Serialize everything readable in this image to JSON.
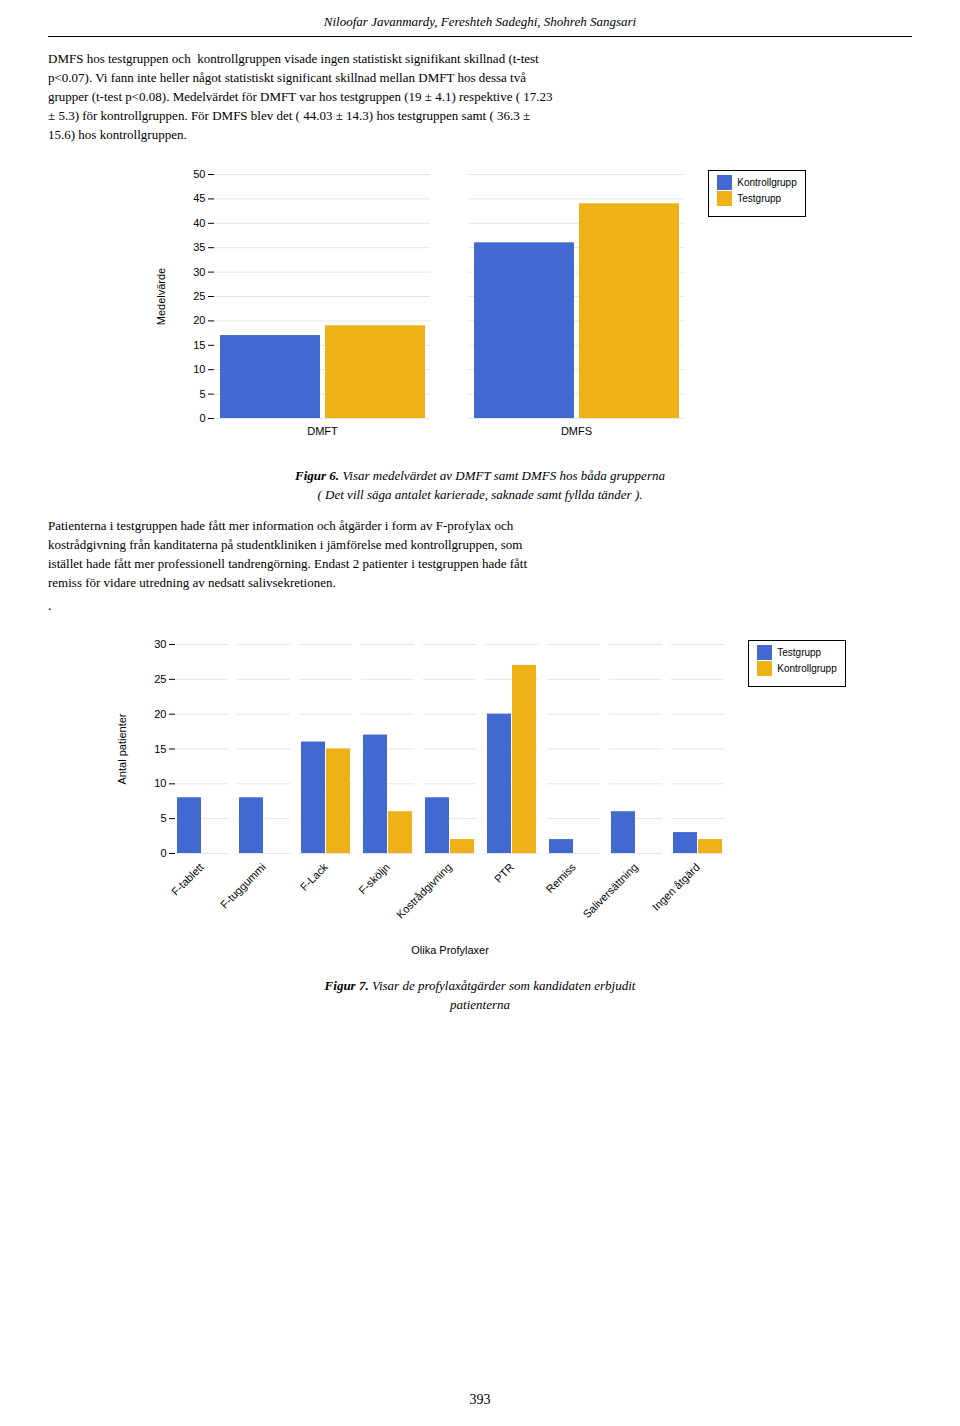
{
  "page_title": "Niloofar Javanmardy, Fereshteh Sadeghi, Shohreh Sangsari",
  "body_text_1": [
    "DMFS hos testgruppen och  kontrollgruppen visade ingen statistiskt signifikant skillnad (t-test",
    "p<0.07). Vi fann inte heller något statistiskt significant skillnad mellan DMFT hos dessa två",
    "grupper (t-test p<0.08). Medelvärdet för DMFT var hos testgruppen (19 ± 4.1) respektive ( 17.23",
    "± 5.3) för kontrollgruppen. För DMFS blev det ( 44.03 ± 14.3) hos testgruppen samt ( 36.3 ±",
    "15.6) hos kontrollgruppen."
  ],
  "body_text_2": [
    "Patienterna i testgruppen hade fått mer information och åtgärder i form av F-profylax och",
    "kostrådgivning från kanditaterna på studentkliniken i jämförelse med kontrollgruppen, som",
    "istället hade fått mer professionell tandrengörning. Endast 2 patienter i testgruppen hade fått",
    "remiss för vidare utredning av nedsatt salivsekretionen."
  ],
  "separator": ".",
  "page_number": "393",
  "chart_data": [
    {
      "type": "bar",
      "categories": [
        "DMFT",
        "DMFS"
      ],
      "series": [
        {
          "name": "Kontrollgrupp",
          "values": [
            17,
            36
          ]
        },
        {
          "name": "Testgrupp",
          "values": [
            19,
            44
          ]
        }
      ],
      "ylabel": "Medelvärde",
      "ylim": [
        0,
        50
      ],
      "yticks": [
        0,
        5,
        10,
        15,
        20,
        25,
        30,
        35,
        40,
        45,
        50
      ],
      "grid": true,
      "legend": "right",
      "caption_label": "Figur 6.",
      "caption": [
        "Visar medelvärdet av DMFT samt DMFS hos båda grupperna",
        "( Det vill säga antalet karierade, saknade samt fyllda tänder )."
      ]
    },
    {
      "type": "bar",
      "categories": [
        "F-tablett",
        "F-tuggummi",
        "F-Lack",
        "F-sköljn",
        "Kostrådgivning",
        "PTR",
        "Remiss",
        "Saliversättning",
        "Ingen åtgärd"
      ],
      "series": [
        {
          "name": "Testgrupp",
          "values": [
            8,
            8,
            16,
            17,
            8,
            20,
            2,
            6,
            3
          ]
        },
        {
          "name": "Kontrollgrupp",
          "values": [
            0,
            0,
            15,
            6,
            2,
            27,
            0,
            0,
            2
          ]
        }
      ],
      "ylabel": "Antal patienter",
      "xlabel": "Olika Profylaxer",
      "ylim": [
        0,
        30
      ],
      "yticks": [
        0,
        5,
        10,
        15,
        20,
        25,
        30
      ],
      "grid": true,
      "legend": "right",
      "caption_label": "Figur 7.",
      "caption": [
        "Visar de profylaxåtgärder som kandidaten erbjudit",
        "patienterna"
      ]
    }
  ]
}
